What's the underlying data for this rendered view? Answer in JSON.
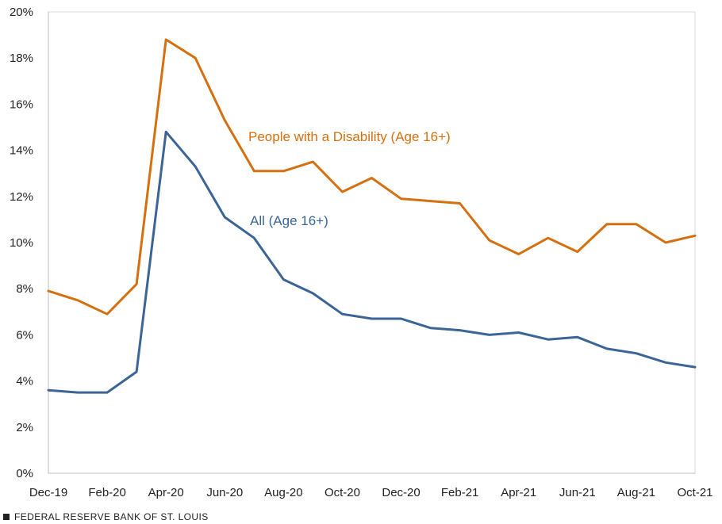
{
  "chart_data": {
    "type": "line",
    "title": "",
    "xlabel": "",
    "ylabel": "",
    "ylim": [
      0,
      20
    ],
    "yticks": [
      "0%",
      "2%",
      "4%",
      "6%",
      "8%",
      "10%",
      "12%",
      "14%",
      "16%",
      "18%",
      "20%"
    ],
    "x": [
      "Dec-19",
      "Jan-20",
      "Feb-20",
      "Mar-20",
      "Apr-20",
      "May-20",
      "Jun-20",
      "Jul-20",
      "Aug-20",
      "Sep-20",
      "Oct-20",
      "Nov-20",
      "Dec-20",
      "Jan-21",
      "Feb-21",
      "Mar-21",
      "Apr-21",
      "May-21",
      "Jun-21",
      "Jul-21",
      "Aug-21",
      "Sep-21",
      "Oct-21"
    ],
    "xtick_labels": [
      "Dec-19",
      "Feb-20",
      "Apr-20",
      "Jun-20",
      "Aug-20",
      "Oct-20",
      "Dec-20",
      "Feb-21",
      "Apr-21",
      "Jun-21",
      "Aug-21",
      "Oct-21"
    ],
    "grid": false,
    "series": [
      {
        "name": "People with a Disability (Age 16+)",
        "color": "#d4700f",
        "values": [
          7.9,
          7.5,
          6.9,
          8.2,
          18.8,
          18.0,
          15.3,
          13.1,
          13.1,
          13.5,
          12.2,
          12.8,
          11.9,
          11.8,
          11.7,
          10.1,
          9.5,
          10.2,
          9.6,
          10.8,
          10.8,
          10.0,
          10.3
        ]
      },
      {
        "name": "All (Age 16+)",
        "color": "#3b6596",
        "values": [
          3.6,
          3.5,
          3.5,
          4.4,
          14.8,
          13.3,
          11.1,
          10.2,
          8.4,
          7.8,
          6.9,
          6.7,
          6.7,
          6.3,
          6.2,
          6.0,
          6.1,
          5.8,
          5.9,
          5.4,
          5.2,
          4.8,
          4.6
        ]
      }
    ]
  },
  "source": "FEDERAL RESERVE BANK OF ST. LOUIS"
}
